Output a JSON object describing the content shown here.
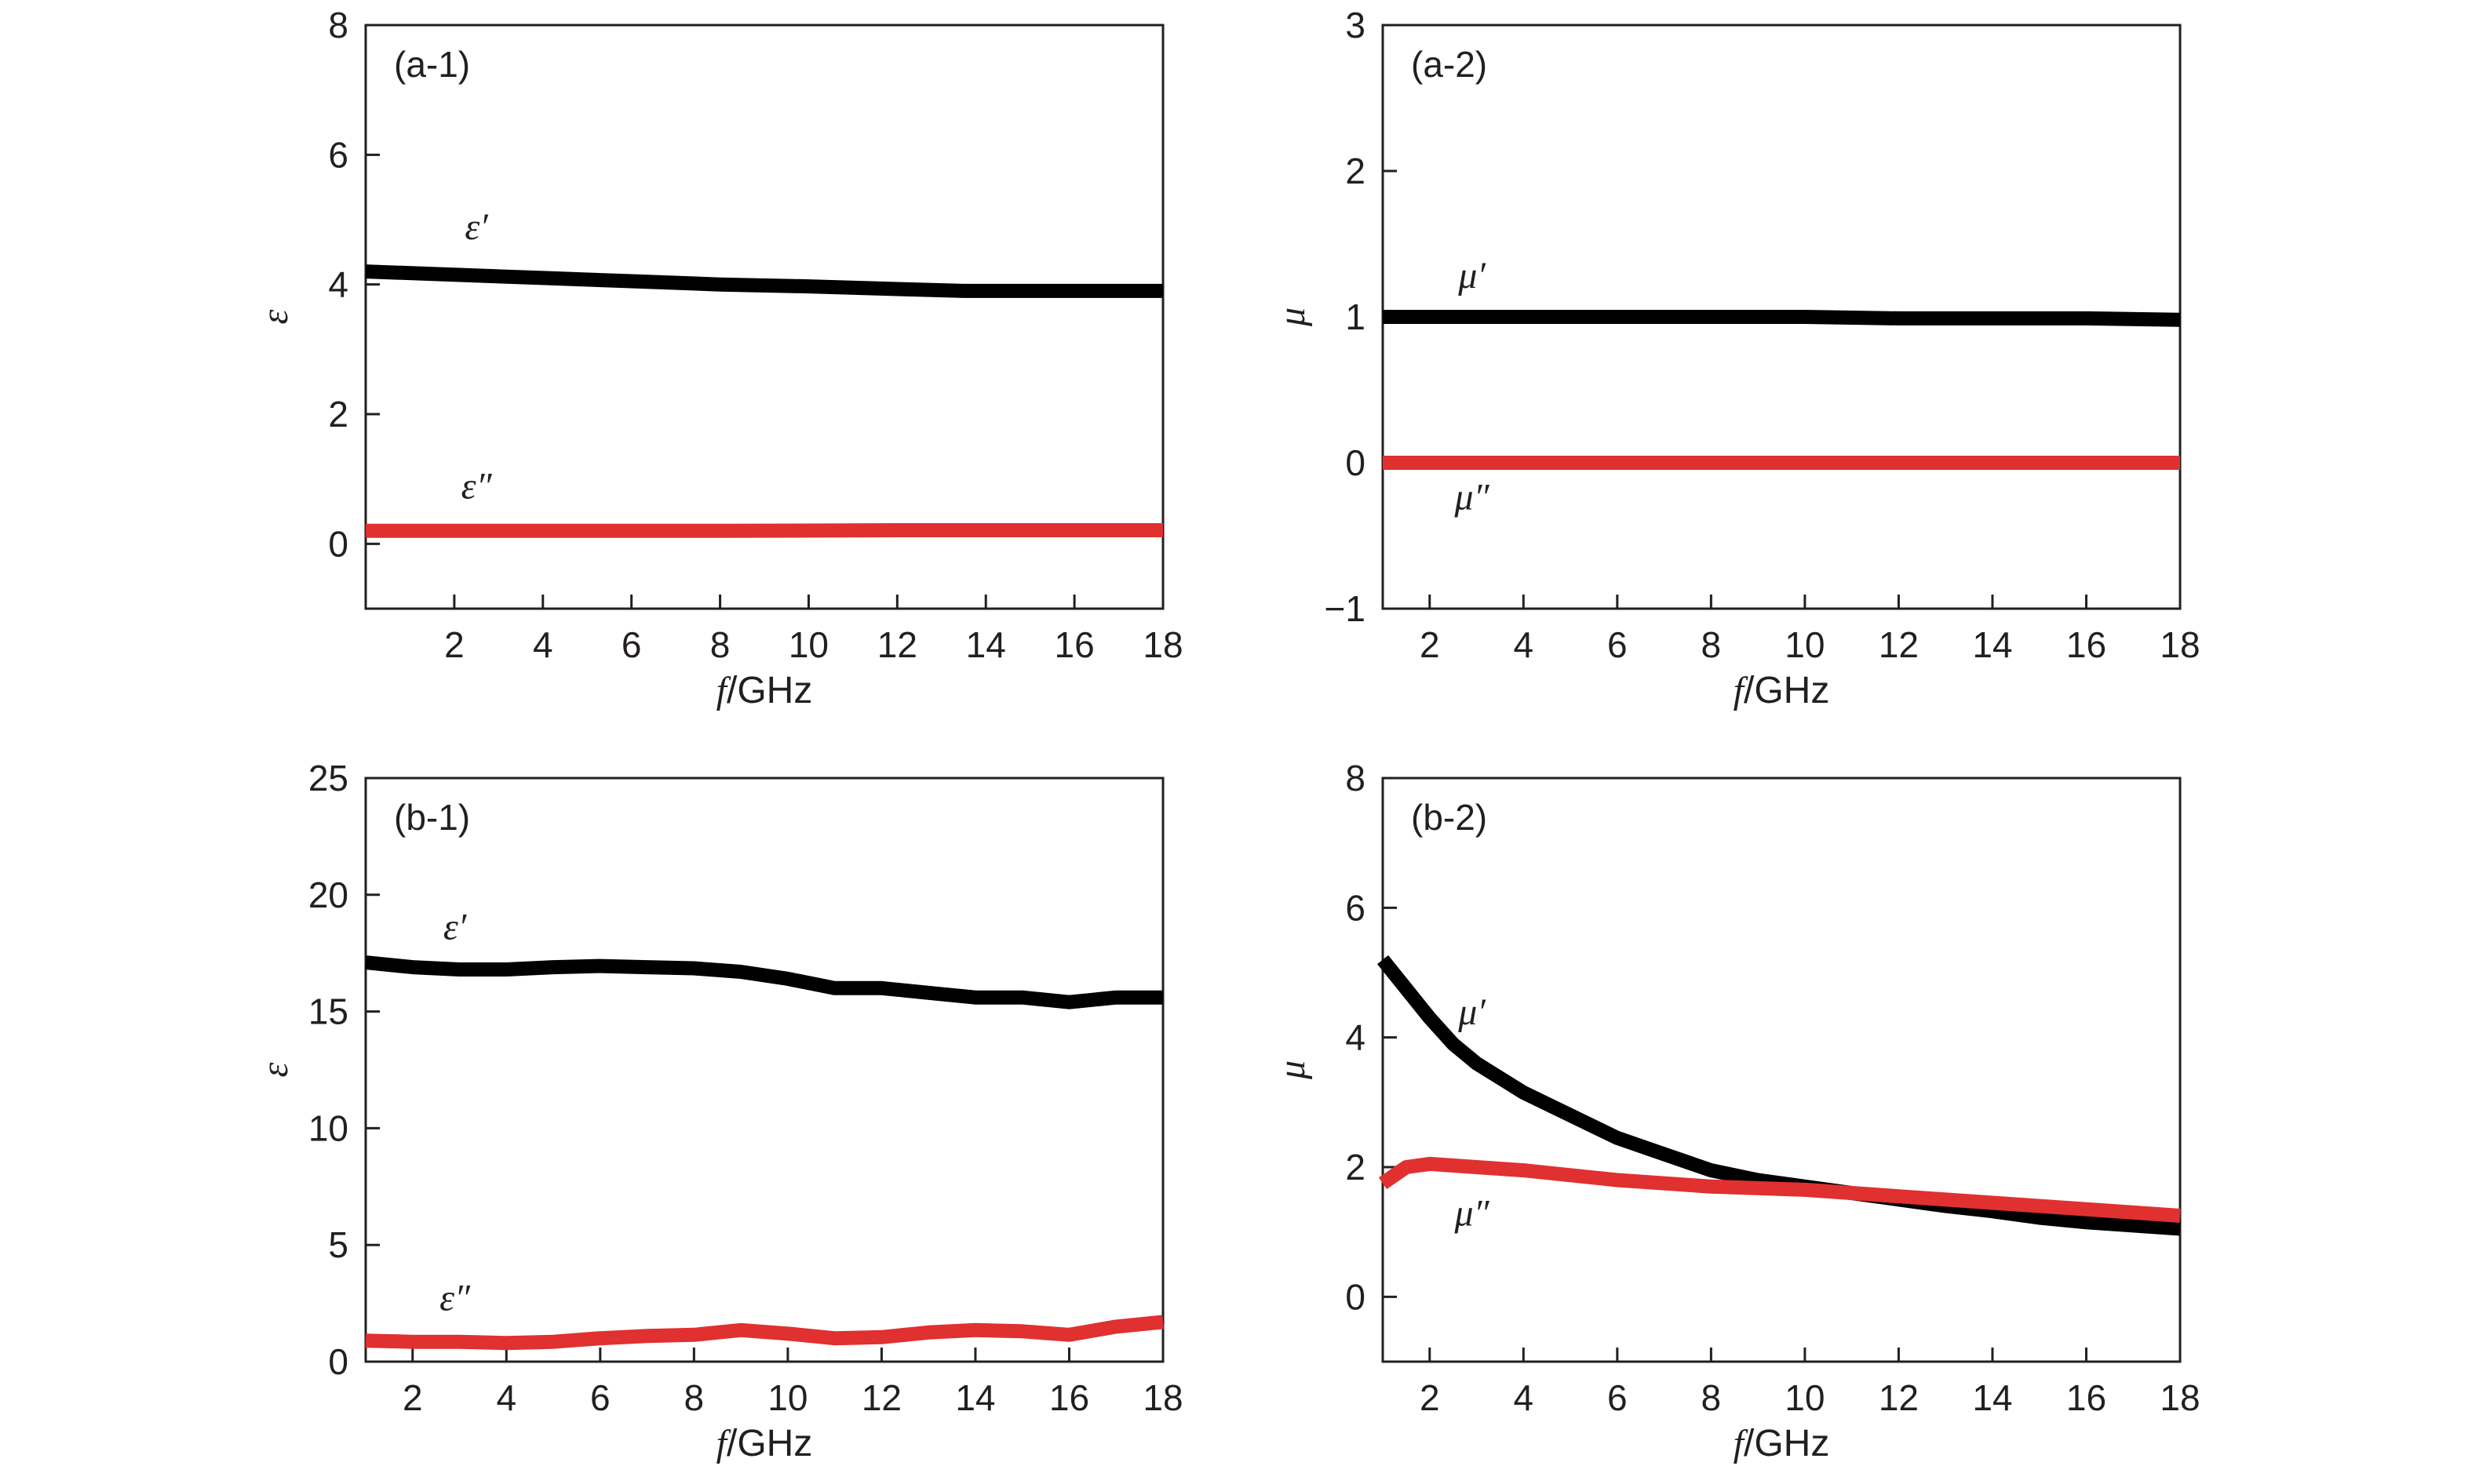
{
  "chart_data": [
    {
      "type": "line",
      "panel_label": "(a-1)",
      "xlabel_italic": "f",
      "xlabel_rest": "/GHz",
      "ylabel": "ε",
      "xlim": [
        0,
        18
      ],
      "ylim": [
        -1,
        8
      ],
      "xticks": [
        2,
        4,
        6,
        8,
        10,
        12,
        14,
        16,
        18
      ],
      "yticks": [
        0,
        2,
        4,
        6,
        8
      ],
      "series": [
        {
          "name": "ε′",
          "color": "#000000",
          "x": [
            0,
            2,
            4,
            6,
            8,
            10,
            12,
            13.5,
            14,
            16,
            18
          ],
          "values": [
            4.2,
            4.15,
            4.1,
            4.05,
            4.0,
            3.97,
            3.93,
            3.9,
            3.9,
            3.9,
            3.9
          ],
          "label": "ε′",
          "label_x": 2.5,
          "label_y": 4.7
        },
        {
          "name": "ε″",
          "color": "#e03030",
          "x": [
            0,
            4,
            8,
            12,
            16,
            18
          ],
          "values": [
            0.2,
            0.2,
            0.2,
            0.21,
            0.21,
            0.21
          ],
          "label": "ε″",
          "label_x": 2.5,
          "label_y": 0.7
        }
      ]
    },
    {
      "type": "line",
      "panel_label": "(a-2)",
      "xlabel_italic": "f",
      "xlabel_rest": "/GHz",
      "ylabel": "μ",
      "xlim": [
        1,
        18
      ],
      "ylim": [
        -1,
        3
      ],
      "xticks": [
        2,
        4,
        6,
        8,
        10,
        12,
        14,
        16,
        18
      ],
      "yticks": [
        -1,
        0,
        1,
        2,
        3
      ],
      "ytick_labels": [
        "−1",
        "0",
        "1",
        "2",
        "3"
      ],
      "series": [
        {
          "name": "μ′",
          "color": "#000000",
          "x": [
            1,
            2,
            4,
            6,
            8,
            10,
            12,
            14,
            16,
            18
          ],
          "values": [
            1.0,
            1.0,
            1.0,
            1.0,
            1.0,
            1.0,
            0.99,
            0.99,
            0.99,
            0.98
          ],
          "label": "μ′",
          "label_x": 2.9,
          "label_y": 1.2
        },
        {
          "name": "μ″",
          "color": "#e03030",
          "x": [
            1,
            4,
            8,
            12,
            16,
            18
          ],
          "values": [
            0.0,
            0.0,
            0.0,
            0.0,
            0.0,
            0.0
          ],
          "label": "μ″",
          "label_x": 2.9,
          "label_y": -0.32
        }
      ]
    },
    {
      "type": "line",
      "panel_label": "(b-1)",
      "xlabel_italic": "f",
      "xlabel_rest": "/GHz",
      "ylabel": "ε",
      "xlim": [
        1,
        18
      ],
      "ylim": [
        0,
        25
      ],
      "xticks": [
        2,
        4,
        6,
        8,
        10,
        12,
        14,
        16,
        18
      ],
      "yticks": [
        0,
        5,
        10,
        15,
        20,
        25
      ],
      "series": [
        {
          "name": "ε′",
          "color": "#000000",
          "x": [
            1,
            2,
            3,
            4,
            5,
            6,
            7,
            8,
            9,
            10,
            11,
            12,
            13,
            14,
            15,
            16,
            17,
            18
          ],
          "values": [
            17.1,
            16.9,
            16.8,
            16.8,
            16.9,
            16.95,
            16.9,
            16.85,
            16.7,
            16.4,
            16.0,
            16.0,
            15.8,
            15.6,
            15.6,
            15.4,
            15.6,
            15.6
          ],
          "label": "ε′",
          "label_x": 2.9,
          "label_y": 18.1
        },
        {
          "name": "ε″",
          "color": "#e03030",
          "x": [
            1,
            2,
            3,
            4,
            5,
            6,
            7,
            8,
            9,
            10,
            11,
            12,
            13,
            14,
            15,
            16,
            17,
            18
          ],
          "values": [
            0.9,
            0.85,
            0.85,
            0.8,
            0.85,
            1.0,
            1.1,
            1.15,
            1.35,
            1.2,
            1.0,
            1.05,
            1.25,
            1.35,
            1.3,
            1.15,
            1.5,
            1.7
          ],
          "label": "ε″",
          "label_x": 2.9,
          "label_y": 2.2
        }
      ]
    },
    {
      "type": "line",
      "panel_label": "(b-2)",
      "xlabel_italic": "f",
      "xlabel_rest": "/GHz",
      "ylabel": "μ",
      "xlim": [
        1,
        18
      ],
      "ylim": [
        -1,
        8
      ],
      "xticks": [
        2,
        4,
        6,
        8,
        10,
        12,
        14,
        16,
        18
      ],
      "yticks": [
        0,
        2,
        4,
        6,
        8
      ],
      "series": [
        {
          "name": "μ′",
          "color": "#000000",
          "x": [
            1,
            1.5,
            2,
            2.5,
            3,
            4,
            5,
            6,
            7,
            8,
            9,
            10,
            11,
            12,
            13,
            14,
            15,
            16,
            17,
            18
          ],
          "values": [
            5.2,
            4.75,
            4.3,
            3.9,
            3.6,
            3.15,
            2.8,
            2.45,
            2.2,
            1.95,
            1.8,
            1.7,
            1.6,
            1.5,
            1.4,
            1.32,
            1.22,
            1.15,
            1.1,
            1.05
          ],
          "label": "μ′",
          "label_x": 2.9,
          "label_y": 4.2
        },
        {
          "name": "μ″",
          "color": "#e03030",
          "x": [
            1,
            1.5,
            2,
            3,
            4,
            6,
            8,
            10,
            12,
            14,
            16,
            18
          ],
          "values": [
            1.75,
            2.0,
            2.05,
            2.0,
            1.95,
            1.8,
            1.7,
            1.65,
            1.55,
            1.45,
            1.35,
            1.25
          ],
          "label": "μ″",
          "label_x": 2.9,
          "label_y": 1.1
        }
      ]
    }
  ]
}
